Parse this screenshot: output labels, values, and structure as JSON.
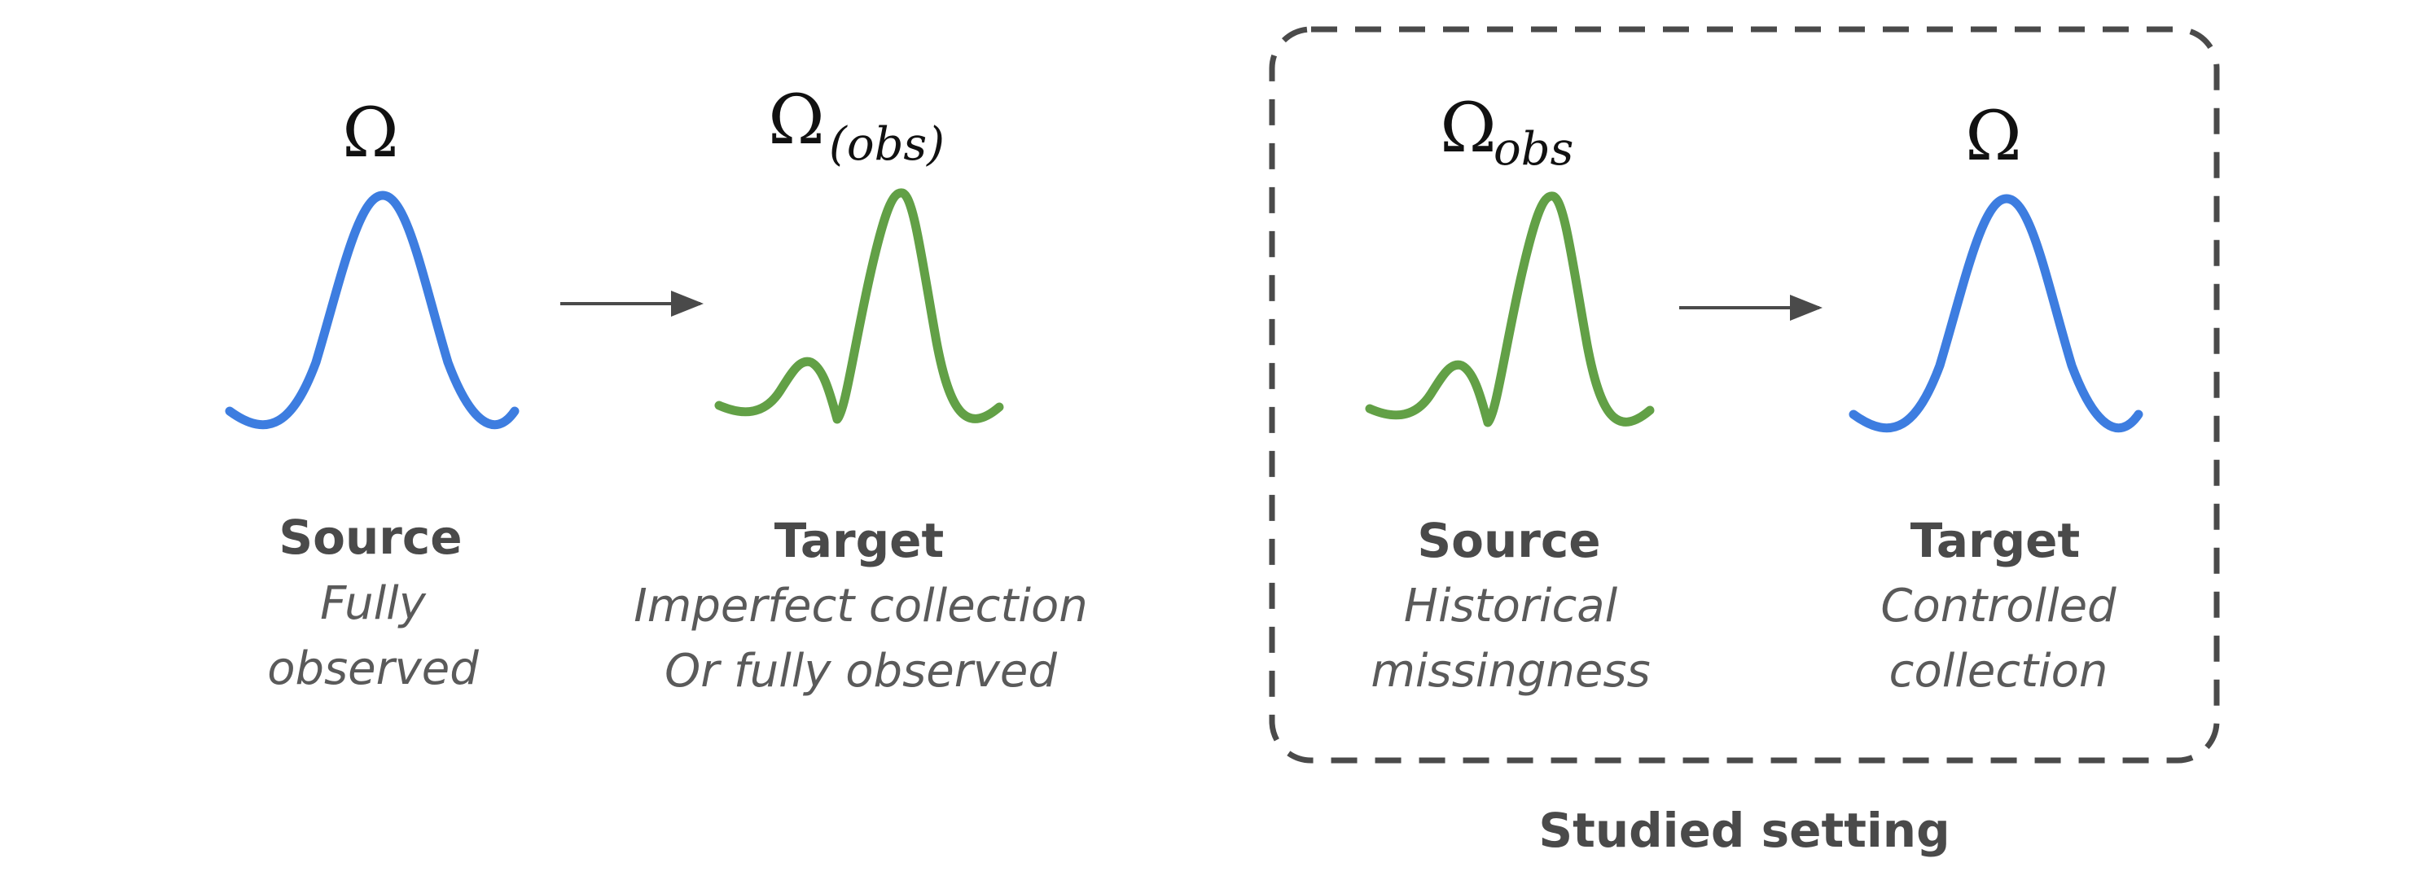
{
  "colors": {
    "fully_observed_curve": "#3d7de0",
    "partially_observed_curve": "#62a046",
    "arrow": "#4a4a4a",
    "setting_box": "#4a4a4a",
    "title_text": "#4a4a4a",
    "description_text": "#5a5a5a"
  },
  "left_pair": {
    "source": {
      "symbol": "Ω",
      "title": "Source",
      "description_line1": "Fully",
      "description_line2": "observed"
    },
    "target": {
      "symbol": "Ω",
      "symbol_subscript": "(obs)",
      "title": "Target",
      "description_line1": "Imperfect collection",
      "description_line2": "Or fully observed"
    }
  },
  "studied_pair": {
    "source": {
      "symbol": "Ω",
      "symbol_subscript": "obs",
      "title": "Source",
      "description_line1": "Historical",
      "description_line2": "missingness"
    },
    "target": {
      "symbol": "Ω",
      "title": "Target",
      "description_line1": "Controlled",
      "description_line2": "collection"
    },
    "box_label": "Studied setting"
  }
}
